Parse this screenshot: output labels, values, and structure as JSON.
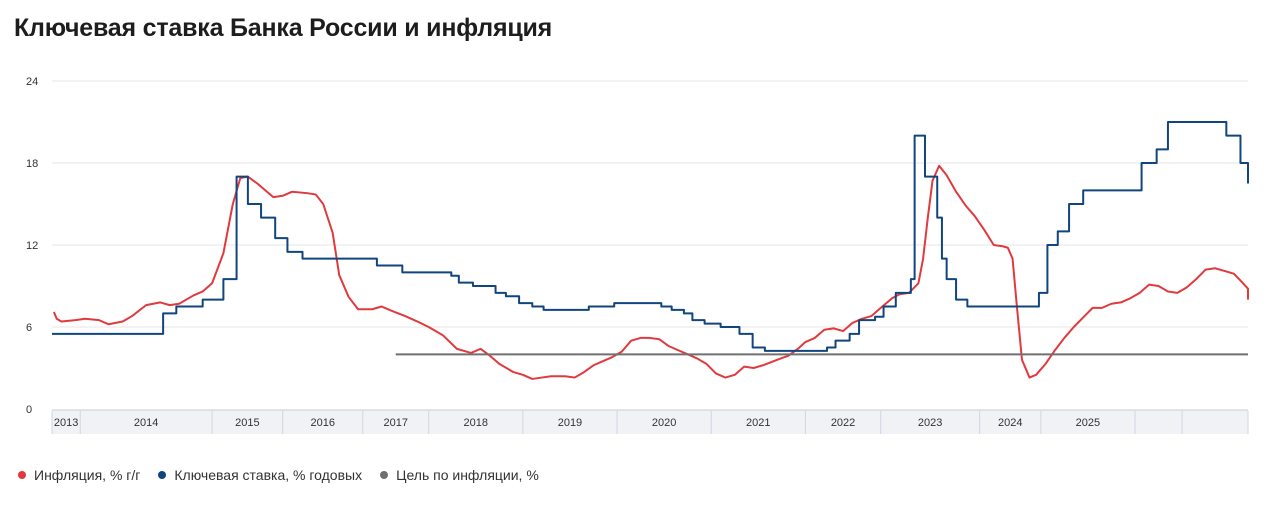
{
  "chart_data": {
    "type": "line",
    "title": "Ключевая ставка Банка России и инфляция",
    "xlabel": "",
    "ylabel": "",
    "ylim": [
      0,
      24
    ],
    "xlim": [
      2013.0,
      2025.7
    ],
    "yticks": [
      0,
      6,
      12,
      18,
      24
    ],
    "year_labels": [
      "2013",
      "2014",
      "2015",
      "2016",
      "2017",
      "2018",
      "2019",
      "2020",
      "2021",
      "2022",
      "2023",
      "2024",
      "2025"
    ],
    "legend_position": "bottom-left",
    "series": [
      {
        "name": "Инфляция, % г/г",
        "color": "#e03a3e",
        "kind": "line",
        "points": [
          [
            2013.02,
            7.1
          ],
          [
            2013.05,
            6.6
          ],
          [
            2013.1,
            6.4
          ],
          [
            2013.25,
            6.5
          ],
          [
            2013.35,
            6.6
          ],
          [
            2013.5,
            6.5
          ],
          [
            2013.6,
            6.2
          ],
          [
            2013.75,
            6.4
          ],
          [
            2013.85,
            6.8
          ],
          [
            2014.0,
            7.6
          ],
          [
            2014.15,
            7.8
          ],
          [
            2014.25,
            7.6
          ],
          [
            2014.35,
            7.7
          ],
          [
            2014.5,
            8.3
          ],
          [
            2014.6,
            8.6
          ],
          [
            2014.7,
            9.2
          ],
          [
            2014.82,
            11.4
          ],
          [
            2014.92,
            15.0
          ],
          [
            2015.0,
            16.9
          ],
          [
            2015.08,
            17.0
          ],
          [
            2015.18,
            16.5
          ],
          [
            2015.35,
            15.5
          ],
          [
            2015.45,
            15.6
          ],
          [
            2015.55,
            15.9
          ],
          [
            2015.7,
            15.8
          ],
          [
            2015.8,
            15.7
          ],
          [
            2015.88,
            15.0
          ],
          [
            2015.98,
            12.9
          ],
          [
            2016.05,
            9.8
          ],
          [
            2016.15,
            8.2
          ],
          [
            2016.25,
            7.3
          ],
          [
            2016.4,
            7.3
          ],
          [
            2016.5,
            7.5
          ],
          [
            2016.6,
            7.2
          ],
          [
            2016.75,
            6.8
          ],
          [
            2016.88,
            6.4
          ],
          [
            2017.0,
            6.0
          ],
          [
            2017.15,
            5.4
          ],
          [
            2017.3,
            4.4
          ],
          [
            2017.45,
            4.1
          ],
          [
            2017.55,
            4.4
          ],
          [
            2017.65,
            3.9
          ],
          [
            2017.75,
            3.3
          ],
          [
            2017.9,
            2.7
          ],
          [
            2018.0,
            2.5
          ],
          [
            2018.1,
            2.2
          ],
          [
            2018.2,
            2.3
          ],
          [
            2018.3,
            2.4
          ],
          [
            2018.45,
            2.4
          ],
          [
            2018.55,
            2.3
          ],
          [
            2018.65,
            2.7
          ],
          [
            2018.75,
            3.2
          ],
          [
            2018.85,
            3.5
          ],
          [
            2018.95,
            3.8
          ],
          [
            2019.05,
            4.2
          ],
          [
            2019.15,
            5.0
          ],
          [
            2019.25,
            5.2
          ],
          [
            2019.35,
            5.2
          ],
          [
            2019.45,
            5.1
          ],
          [
            2019.55,
            4.6
          ],
          [
            2019.65,
            4.3
          ],
          [
            2019.75,
            4.0
          ],
          [
            2019.85,
            3.7
          ],
          [
            2019.95,
            3.3
          ],
          [
            2020.05,
            2.6
          ],
          [
            2020.15,
            2.3
          ],
          [
            2020.25,
            2.5
          ],
          [
            2020.35,
            3.1
          ],
          [
            2020.45,
            3.0
          ],
          [
            2020.55,
            3.2
          ],
          [
            2020.7,
            3.6
          ],
          [
            2020.82,
            3.9
          ],
          [
            2020.92,
            4.4
          ],
          [
            2021.0,
            4.9
          ],
          [
            2021.1,
            5.2
          ],
          [
            2021.2,
            5.8
          ],
          [
            2021.3,
            5.9
          ],
          [
            2021.4,
            5.7
          ],
          [
            2021.5,
            6.3
          ],
          [
            2021.6,
            6.6
          ],
          [
            2021.7,
            6.8
          ],
          [
            2021.8,
            7.4
          ],
          [
            2021.92,
            8.1
          ],
          [
            2022.0,
            8.4
          ],
          [
            2022.1,
            8.5
          ],
          [
            2022.2,
            9.2
          ],
          [
            2022.25,
            11.0
          ],
          [
            2022.3,
            14.0
          ],
          [
            2022.35,
            16.7
          ],
          [
            2022.42,
            17.8
          ],
          [
            2022.5,
            17.1
          ],
          [
            2022.6,
            15.9
          ],
          [
            2022.7,
            14.9
          ],
          [
            2022.8,
            14.1
          ],
          [
            2022.9,
            13.1
          ],
          [
            2023.0,
            12.0
          ],
          [
            2023.1,
            11.9
          ],
          [
            2023.15,
            11.8
          ],
          [
            2023.2,
            11.0
          ],
          [
            2023.25,
            7.2
          ],
          [
            2023.3,
            3.6
          ],
          [
            2023.38,
            2.3
          ],
          [
            2023.45,
            2.5
          ],
          [
            2023.55,
            3.3
          ],
          [
            2023.65,
            4.3
          ],
          [
            2023.75,
            5.2
          ],
          [
            2023.85,
            6.0
          ],
          [
            2023.95,
            6.7
          ],
          [
            2024.05,
            7.4
          ],
          [
            2024.15,
            7.4
          ],
          [
            2024.25,
            7.7
          ],
          [
            2024.35,
            7.8
          ],
          [
            2024.45,
            8.1
          ],
          [
            2024.55,
            8.5
          ],
          [
            2024.65,
            9.1
          ],
          [
            2024.75,
            9.0
          ],
          [
            2024.85,
            8.6
          ],
          [
            2024.95,
            8.5
          ],
          [
            2025.05,
            8.9
          ],
          [
            2025.15,
            9.5
          ],
          [
            2025.25,
            10.2
          ],
          [
            2025.35,
            10.3
          ],
          [
            2025.45,
            10.1
          ],
          [
            2025.55,
            9.9
          ],
          [
            2025.62,
            9.4
          ],
          [
            2025.7,
            8.8
          ],
          [
            2025.8,
            8.2
          ],
          [
            2025.95,
            8.0
          ]
        ]
      },
      {
        "name": "Ключевая ставка, % годовых",
        "color": "#11457e",
        "kind": "step",
        "points": [
          [
            2013.0,
            5.5
          ],
          [
            2014.18,
            7.0
          ],
          [
            2014.32,
            7.5
          ],
          [
            2014.6,
            8.0
          ],
          [
            2014.82,
            9.5
          ],
          [
            2014.96,
            17.0
          ],
          [
            2015.08,
            15.0
          ],
          [
            2015.22,
            14.0
          ],
          [
            2015.37,
            12.5
          ],
          [
            2015.5,
            11.5
          ],
          [
            2015.66,
            11.0
          ],
          [
            2016.45,
            10.5
          ],
          [
            2016.72,
            10.0
          ],
          [
            2017.24,
            9.75
          ],
          [
            2017.32,
            9.25
          ],
          [
            2017.47,
            9.0
          ],
          [
            2017.71,
            8.5
          ],
          [
            2017.82,
            8.25
          ],
          [
            2017.96,
            7.75
          ],
          [
            2018.1,
            7.5
          ],
          [
            2018.22,
            7.25
          ],
          [
            2018.7,
            7.5
          ],
          [
            2018.97,
            7.75
          ],
          [
            2019.47,
            7.5
          ],
          [
            2019.58,
            7.25
          ],
          [
            2019.71,
            7.0
          ],
          [
            2019.8,
            6.5
          ],
          [
            2019.93,
            6.25
          ],
          [
            2020.1,
            6.0
          ],
          [
            2020.3,
            5.5
          ],
          [
            2020.44,
            4.5
          ],
          [
            2020.57,
            4.25
          ],
          [
            2021.23,
            4.5
          ],
          [
            2021.32,
            5.0
          ],
          [
            2021.47,
            5.5
          ],
          [
            2021.57,
            6.5
          ],
          [
            2021.74,
            6.75
          ],
          [
            2021.83,
            7.5
          ],
          [
            2021.96,
            8.5
          ],
          [
            2022.12,
            9.5
          ],
          [
            2022.16,
            20.0
          ],
          [
            2022.27,
            17.0
          ],
          [
            2022.4,
            14.0
          ],
          [
            2022.45,
            11.0
          ],
          [
            2022.5,
            9.5
          ],
          [
            2022.6,
            8.0
          ],
          [
            2022.72,
            7.5
          ],
          [
            2023.48,
            8.5
          ],
          [
            2023.57,
            12.0
          ],
          [
            2023.68,
            13.0
          ],
          [
            2023.8,
            15.0
          ],
          [
            2023.95,
            16.0
          ],
          [
            2024.57,
            18.0
          ],
          [
            2024.73,
            19.0
          ],
          [
            2024.85,
            21.0
          ],
          [
            2025.47,
            20.0
          ],
          [
            2025.62,
            18.0
          ],
          [
            2025.78,
            17.0
          ],
          [
            2025.92,
            16.5
          ],
          [
            2026.05,
            16.5
          ]
        ]
      },
      {
        "name": "Цель по инфляции, %",
        "color": "#707070",
        "kind": "line",
        "points": [
          [
            2016.65,
            4.0
          ],
          [
            2026.05,
            4.0
          ]
        ]
      }
    ]
  },
  "legend": {
    "items": [
      {
        "label": "Инфляция, % г/г",
        "color": "#e03a3e"
      },
      {
        "label": "Ключевая ставка, % годовых",
        "color": "#11457e"
      },
      {
        "label": "Цель по инфляции, %",
        "color": "#707070"
      }
    ]
  },
  "colors": {
    "grid": "#e6e6e6",
    "axis": "#c9cdd4",
    "year_bar": "#f0f2f6",
    "year_separator": "#cfd6e2"
  }
}
